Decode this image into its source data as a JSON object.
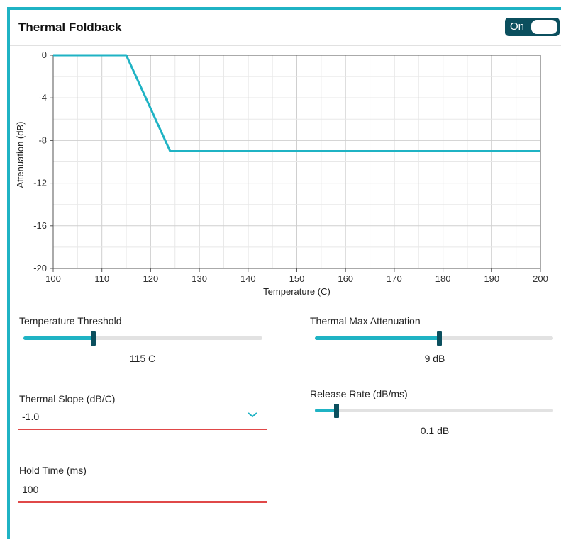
{
  "header": {
    "title": "Thermal Foldback",
    "toggle_label": "On",
    "toggle_on": true
  },
  "colors": {
    "accent": "#1fb3c4",
    "dark_accent": "#0b4f5e",
    "error_underline": "#e04848"
  },
  "chart_data": {
    "type": "line",
    "xlabel": "Temperature (C)",
    "ylabel": "Attenuation (dB)",
    "xlim": [
      100,
      200
    ],
    "ylim": [
      -20,
      0
    ],
    "x_ticks": [
      100,
      110,
      120,
      130,
      140,
      150,
      160,
      170,
      180,
      190,
      200
    ],
    "y_ticks": [
      0,
      -4,
      -8,
      -12,
      -16,
      -20
    ],
    "grid": true,
    "series": [
      {
        "x": [
          100,
          115,
          124,
          200
        ],
        "y": [
          0,
          0,
          -9,
          -9
        ]
      }
    ]
  },
  "controls": {
    "temp_threshold": {
      "label": "Temperature Threshold",
      "value_text": "115 C",
      "fraction": 0.29
    },
    "thermal_max_atten": {
      "label": "Thermal Max Attenuation",
      "value_text": "9 dB",
      "fraction": 0.52
    },
    "thermal_slope": {
      "label": "Thermal Slope (dB/C)",
      "value": "-1.0"
    },
    "release_rate": {
      "label": "Release Rate (dB/ms)",
      "value_text": "0.1 dB",
      "fraction": 0.09
    },
    "hold_time": {
      "label": "Hold Time (ms)",
      "value": "100"
    }
  }
}
